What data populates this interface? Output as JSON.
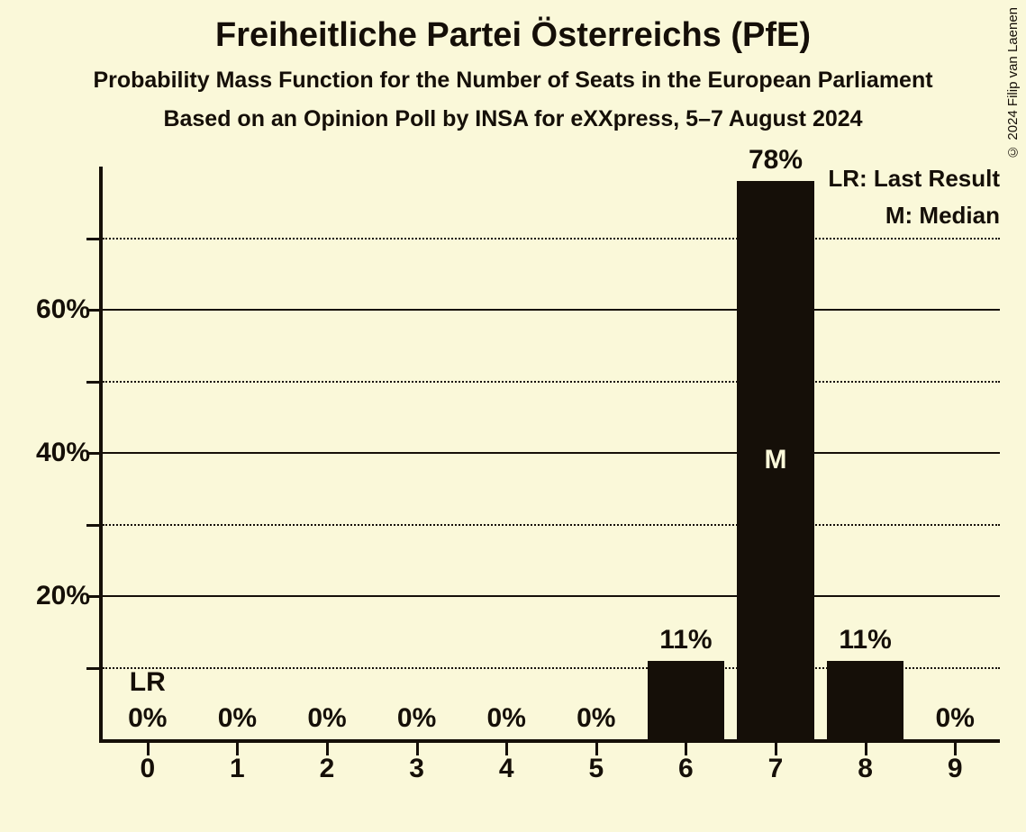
{
  "title": "Freiheitliche Partei Österreichs (PfE)",
  "subtitle1": "Probability Mass Function for the Number of Seats in the European Parliament",
  "subtitle2": "Based on an Opinion Poll by INSA for eXXpress, 5–7 August 2024",
  "copyright": "© 2024 Filip van Laenen",
  "chart": {
    "type": "bar",
    "background_color": "#faf8d9",
    "foreground_color": "#150f08",
    "bar_marker_color": "#faf8d9",
    "categories": [
      "0",
      "1",
      "2",
      "3",
      "4",
      "5",
      "6",
      "7",
      "8",
      "9"
    ],
    "values": [
      0,
      0,
      0,
      0,
      0,
      0,
      11,
      78,
      11,
      0
    ],
    "value_labels": [
      "0%",
      "0%",
      "0%",
      "0%",
      "0%",
      "0%",
      "11%",
      "78%",
      "11%",
      "0%"
    ],
    "bar_annotations": {
      "0": "LR"
    },
    "bar_markers": {
      "7": "M"
    },
    "ylim": [
      0,
      80
    ],
    "y_major_ticks": [
      20,
      40,
      60
    ],
    "y_major_tick_labels": [
      "20%",
      "40%",
      "60%"
    ],
    "y_minor_ticks": [
      10,
      30,
      50,
      70
    ],
    "bar_width_ratio": 0.86,
    "legend": {
      "lines": [
        "LR: Last Result",
        "M: Median"
      ]
    },
    "title_fontsize": 38,
    "subtitle_fontsize": 25,
    "tick_label_fontsize": 30,
    "bar_label_fontsize": 30,
    "legend_fontsize": 26
  }
}
